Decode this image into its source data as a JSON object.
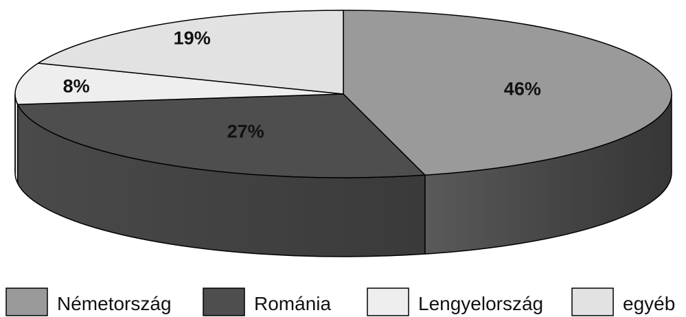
{
  "chart_data": {
    "type": "pie",
    "style": "3d",
    "categories": [
      "Németország",
      "Románia",
      "Lengyelország",
      "egyéb"
    ],
    "values": [
      46,
      27,
      8,
      19
    ],
    "labels": [
      "46%",
      "27%",
      "8%",
      "19%"
    ],
    "colors": [
      "#9a9a9a",
      "#4e4e4e",
      "#eeeeee",
      "#e2e2e2"
    ],
    "legend_position": "bottom"
  }
}
